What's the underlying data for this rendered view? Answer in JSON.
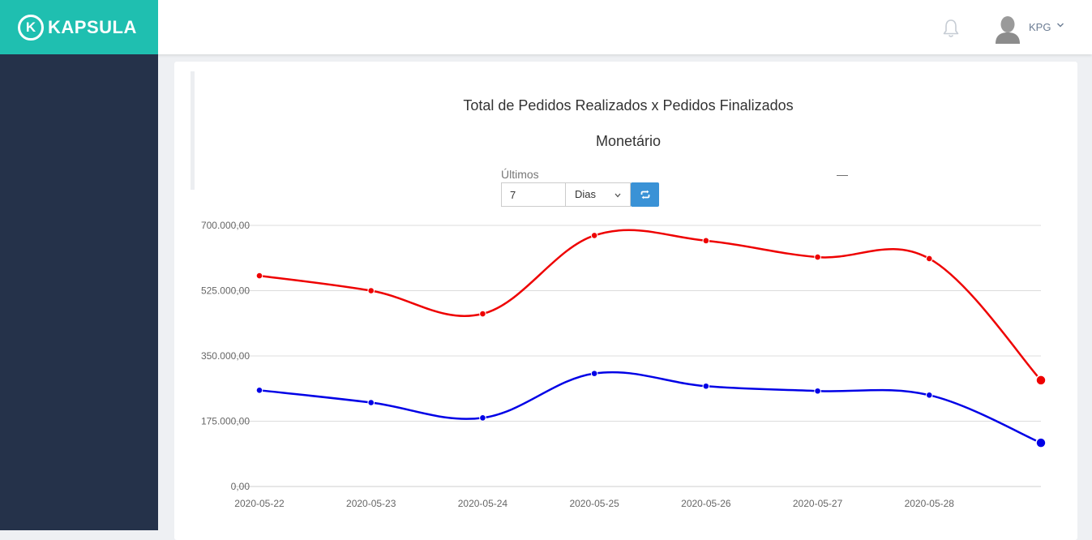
{
  "brand": {
    "name": "KAPSULA",
    "mark": "K"
  },
  "header": {
    "user": "KPG"
  },
  "icons": {
    "notifications": "bell-icon",
    "user": "avatar-icon",
    "refresh": "refresh-icon",
    "dropdown": "chevron-down-icon"
  },
  "colors": {
    "teal": "#1fbfb0",
    "sidebar": "#25324a",
    "button": "#3a92d6",
    "series_realizados": "#ee0000",
    "series_finalizados": "#0000e6"
  },
  "filters": {
    "label": "Últimos",
    "separator": "—",
    "quantity": "7",
    "unit": "Dias"
  },
  "chart_data": {
    "type": "line",
    "title": "Total de Pedidos Realizados x Pedidos Finalizados",
    "subtitle": "Monetário",
    "categories": [
      "2020-05-22",
      "2020-05-23",
      "2020-05-24",
      "2020-05-25",
      "2020-05-26",
      "2020-05-27",
      "2020-05-28",
      ""
    ],
    "yticks": [
      "0,00",
      "175.000,00",
      "350.000,00",
      "525.000,00",
      "700.000,00"
    ],
    "ylim": [
      0,
      700000
    ],
    "series": [
      {
        "name": "Pedidos Realizados",
        "values": [
          565000,
          525000,
          463000,
          673000,
          659000,
          615000,
          611000,
          285000
        ]
      },
      {
        "name": "Pedidos Finalizados",
        "values": [
          258000,
          225000,
          184000,
          303000,
          269000,
          256000,
          245000,
          117000
        ]
      }
    ]
  }
}
